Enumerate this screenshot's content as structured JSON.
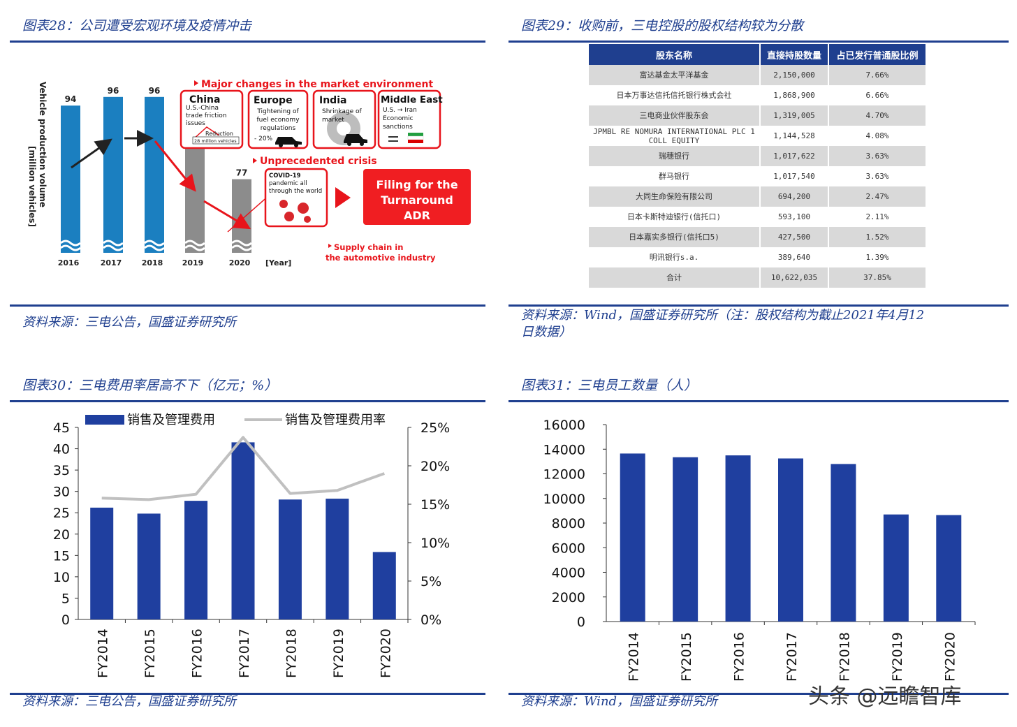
{
  "panel28": {
    "title": "图表28：公司遭受宏观环境及疫情冲击",
    "source": "资料来源：三电公告，国盛证券研究所",
    "ylabel_line1": "Vehicle production volume",
    "ylabel_line2": "[million vehicles]",
    "years": [
      "2016",
      "2017",
      "2018",
      "2019",
      "2020"
    ],
    "values": [
      "94",
      "96",
      "96",
      "91",
      "77"
    ],
    "year_unit": "[Year]",
    "market_heading": "Major changes in the market environment",
    "china_title": "China",
    "china_l1": "U.S.-China",
    "china_l2": "trade friction",
    "china_l3": "issues",
    "china_reduction": "Reduction",
    "china_reduction2": "28 million vehicles",
    "europe_title": "Europe",
    "europe_l1": "Tightening of",
    "europe_l2": "fuel economy",
    "europe_l3": "regulations",
    "europe_l4": "- 20%",
    "india_title": "India",
    "india_l1": "Shrinkage of",
    "india_l2": "market",
    "me_title": "Middle East",
    "me_l1": "U.S. → Iran",
    "me_l2": "Economic",
    "me_l3": "sanctions",
    "crisis_heading": "Unprecedented crisis",
    "covid_l1": "COVID-19",
    "covid_l2": "pandemic all",
    "covid_l3": "through the world",
    "filing_l1": "Filing for the",
    "filing_l2": "Turnaround",
    "filing_l3": "ADR",
    "supply_l1": "Supply chain in",
    "supply_l2": "the automotive industry"
  },
  "panel29": {
    "title": "图表29：收购前，三电控股的股权结构较为分散",
    "source_l1": "资料来源：Wind，国盛证券研究所（注：股权结构为截止2021年4月12",
    "source_l2": "日数据）",
    "headers": [
      "股东名称",
      "直接持股数量",
      "占已发行普通股比例"
    ],
    "rows": [
      [
        "富达基金太平洋基金",
        "2,150,000",
        "7.66%"
      ],
      [
        "日本万事达信托信托银行株式会社",
        "1,868,900",
        "6.66%"
      ],
      [
        "三电商业伙伴股东会",
        "1,319,005",
        "4.70%"
      ],
      [
        "JPMBL RE NOMURA INTERNATIONAL PLC 1 COLL EQUITY",
        "1,144,528",
        "4.08%"
      ],
      [
        "瑞穗银行",
        "1,017,622",
        "3.63%"
      ],
      [
        "群马银行",
        "1,017,540",
        "3.63%"
      ],
      [
        "大同生命保险有限公司",
        "694,200",
        "2.47%"
      ],
      [
        "日本卡斯特迪银行(信托口)",
        "593,100",
        "2.11%"
      ],
      [
        "日本嘉实多银行(信托口5)",
        "427,500",
        "1.52%"
      ],
      [
        "明讯银行s.a.",
        "389,640",
        "1.39%"
      ],
      [
        "合计",
        "10,622,035",
        "37.85%"
      ]
    ]
  },
  "panel30": {
    "title": "图表30：三电费用率居高不下（亿元；%）",
    "source": "资料来源：三电公告，国盛证券研究所"
  },
  "panel31": {
    "title": "图表31：三电员工数量（人）",
    "source": "资料来源：Wind，国盛证券研究所"
  },
  "watermark": "头条 @远瞻智库",
  "chart_data": [
    {
      "type": "bar",
      "categories": [
        "2016",
        "2017",
        "2018",
        "2019",
        "2020"
      ],
      "values": [
        94,
        96,
        96,
        91,
        77
      ],
      "ylabel": "Vehicle production volume [million vehicles]",
      "xlabel": "[Year]"
    },
    {
      "type": "bar",
      "categories": [
        "FY2014",
        "FY2015",
        "FY2016",
        "FY2017",
        "FY2018",
        "FY2019",
        "FY2020"
      ],
      "series": [
        {
          "name": "销售及管理费用",
          "type": "bar",
          "axis": "left",
          "values": [
            26.2,
            24.8,
            27.8,
            41.5,
            28.1,
            28.3,
            15.8
          ]
        },
        {
          "name": "销售及管理费用率",
          "type": "line",
          "axis": "right",
          "values": [
            15.8,
            15.6,
            16.3,
            23.7,
            16.4,
            16.8,
            19.0
          ]
        }
      ],
      "ylim": [
        0,
        45
      ],
      "yticks": [
        "0",
        "5",
        "10",
        "15",
        "20",
        "25",
        "30",
        "35",
        "40",
        "45"
      ],
      "y2lim": [
        0,
        25
      ],
      "y2ticks": [
        "0%",
        "5%",
        "10%",
        "15%",
        "20%",
        "25%"
      ],
      "colors": {
        "bar": "#1f3f9f",
        "line": "#c0c0c0"
      },
      "legend": "top"
    },
    {
      "type": "bar",
      "categories": [
        "FY2014",
        "FY2015",
        "FY2016",
        "FY2017",
        "FY2018",
        "FY2019",
        "FY2020"
      ],
      "values": [
        13650,
        13350,
        13500,
        13250,
        12800,
        8700,
        8650
      ],
      "ylim": [
        0,
        16000
      ],
      "yticks": [
        "0",
        "2000",
        "4000",
        "6000",
        "8000",
        "10000",
        "12000",
        "14000",
        "16000"
      ],
      "colors": {
        "bar": "#1f3f9f"
      }
    }
  ]
}
